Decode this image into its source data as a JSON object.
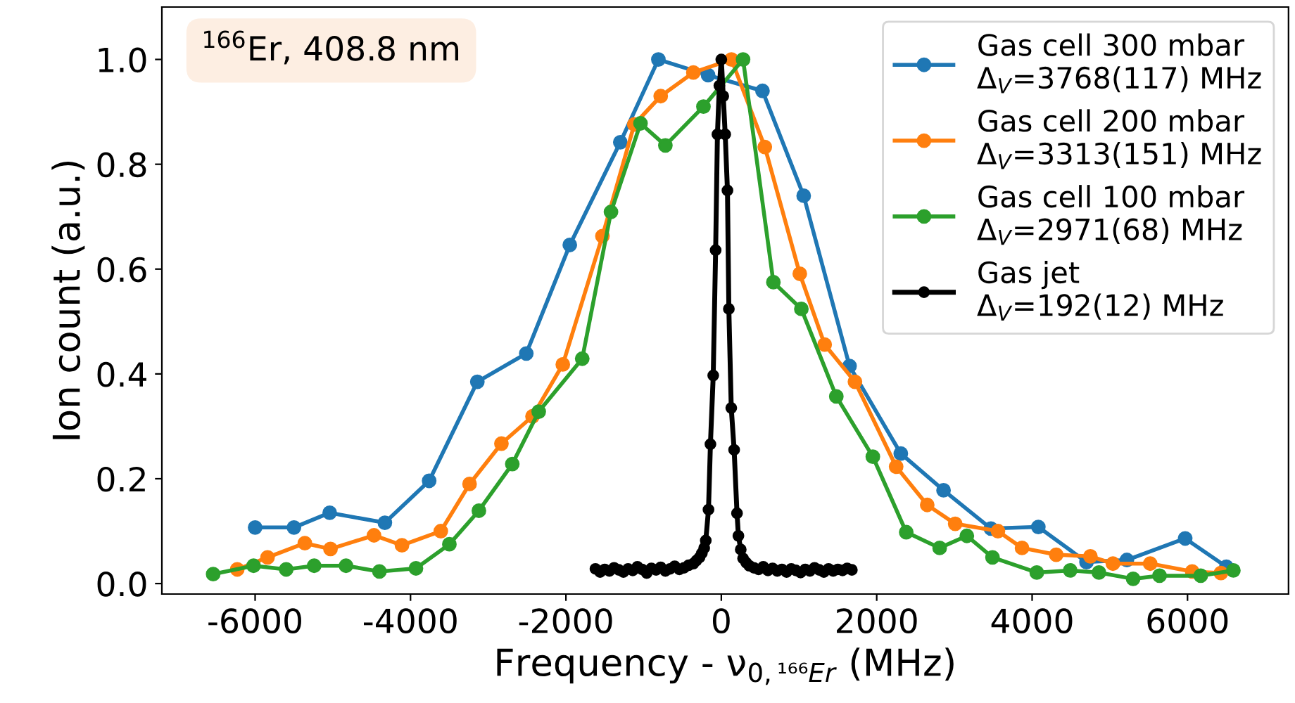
{
  "chart_data": {
    "type": "line",
    "xlabel": "Frequency - ν$_{0,¹⁶⁶Er}$ (MHz)",
    "ylabel": "Ion count (a.u.)",
    "xlim": [
      -7200,
      7300
    ],
    "ylim": [
      -0.02,
      1.1
    ],
    "xticks": [
      -6000,
      -4000,
      -2000,
      0,
      2000,
      4000,
      6000
    ],
    "yticks": [
      {
        "value": 0,
        "label": "0.0"
      },
      0.2,
      0.4,
      0.6,
      0.8,
      {
        "value": 1,
        "label": "1.0"
      }
    ],
    "grid": false,
    "legend": "top right",
    "marker": "circle",
    "line_style": "solid",
    "annotations": [
      "$^{166}$Er, 408.8 nm"
    ],
    "series": [
      {
        "name": "Gas cell 300 mbar\nΔ$_{V}$=3768(117) MHz",
        "color": "#1f77b4",
        "x": [
          -6000,
          -5500,
          -5040,
          -4330,
          -3760,
          -3140,
          -2510,
          -1950,
          -1300,
          -810,
          -170,
          530,
          1060,
          1650,
          2310,
          2860,
          3470,
          4080,
          4700,
          5220,
          5970,
          6500
        ],
        "values": [
          0.107,
          0.107,
          0.135,
          0.116,
          0.196,
          0.385,
          0.439,
          0.646,
          0.842,
          1.0,
          0.97,
          0.94,
          0.74,
          0.415,
          0.248,
          0.178,
          0.105,
          0.108,
          0.041,
          0.045,
          0.086,
          0.032
        ]
      },
      {
        "name": "Gas cell 200 mbar\nΔ$_{V}$=3313(151) MHz",
        "color": "#ff7f0e",
        "x": [
          -6230,
          -5840,
          -5360,
          -5030,
          -4470,
          -4110,
          -3610,
          -3240,
          -2830,
          -2430,
          -2040,
          -1530,
          -1120,
          -780,
          -360,
          130,
          560,
          1010,
          1330,
          1720,
          2250,
          2650,
          3010,
          3560,
          3870,
          4310,
          4750,
          5040,
          5520,
          6060,
          6430
        ],
        "values": [
          0.027,
          0.05,
          0.077,
          0.066,
          0.092,
          0.073,
          0.1,
          0.19,
          0.267,
          0.319,
          0.418,
          0.663,
          0.876,
          0.93,
          0.975,
          1.0,
          0.833,
          0.591,
          0.456,
          0.385,
          0.223,
          0.15,
          0.114,
          0.1,
          0.068,
          0.055,
          0.052,
          0.038,
          0.038,
          0.023,
          0.02
        ]
      },
      {
        "name": "Gas cell 100 mbar\nΔ$_{V}$=2971(68) MHz",
        "color": "#2ca02c",
        "x": [
          -6540,
          -6020,
          -5600,
          -5240,
          -4830,
          -4400,
          -3930,
          -3500,
          -3120,
          -2690,
          -2350,
          -1790,
          -1420,
          -1040,
          -720,
          -230,
          280,
          670,
          1030,
          1480,
          1950,
          2380,
          2810,
          3160,
          3490,
          4060,
          4490,
          4860,
          5300,
          5640,
          6170,
          6590
        ],
        "values": [
          0.018,
          0.034,
          0.027,
          0.034,
          0.034,
          0.023,
          0.029,
          0.075,
          0.139,
          0.228,
          0.328,
          0.429,
          0.709,
          0.878,
          0.836,
          0.91,
          1.0,
          0.575,
          0.524,
          0.357,
          0.242,
          0.098,
          0.068,
          0.091,
          0.05,
          0.021,
          0.025,
          0.021,
          0.009,
          0.015,
          0.015,
          0.025
        ]
      },
      {
        "name": "Gas jet\nΔ$_{V}$=192(12) MHz",
        "color": "#000000",
        "x": [
          -1620,
          -1560,
          -1500,
          -1440,
          -1380,
          -1320,
          -1260,
          -1200,
          -1140,
          -1080,
          -1020,
          -960,
          -900,
          -840,
          -780,
          -720,
          -660,
          -600,
          -540,
          -480,
          -420,
          -360,
          -320,
          -280,
          -250,
          -220,
          -200,
          -165,
          -140,
          -104,
          -73,
          -50,
          -25,
          0,
          25,
          50,
          79,
          97,
          128,
          165,
          202,
          220,
          250,
          280,
          320,
          360,
          420,
          480,
          540,
          600,
          660,
          720,
          780,
          840,
          900,
          960,
          1020,
          1080,
          1140,
          1200,
          1260,
          1320,
          1380,
          1440,
          1500,
          1560,
          1620,
          1680
        ],
        "values": [
          0.028,
          0.022,
          0.027,
          0.024,
          0.03,
          0.026,
          0.022,
          0.028,
          0.025,
          0.032,
          0.027,
          0.02,
          0.029,
          0.026,
          0.031,
          0.024,
          0.028,
          0.033,
          0.027,
          0.03,
          0.035,
          0.038,
          0.044,
          0.05,
          0.058,
          0.068,
          0.082,
          0.141,
          0.266,
          0.397,
          0.636,
          0.857,
          0.95,
          1.0,
          0.93,
          0.857,
          0.75,
          0.524,
          0.335,
          0.255,
          0.134,
          0.091,
          0.065,
          0.048,
          0.04,
          0.034,
          0.03,
          0.027,
          0.032,
          0.025,
          0.029,
          0.024,
          0.027,
          0.022,
          0.028,
          0.025,
          0.021,
          0.027,
          0.024,
          0.03,
          0.026,
          0.022,
          0.028,
          0.024,
          0.027,
          0.025,
          0.029,
          0.026
        ]
      }
    ]
  }
}
